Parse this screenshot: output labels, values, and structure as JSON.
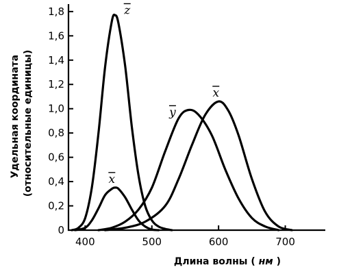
{
  "chart_data": {
    "type": "line",
    "title": "",
    "xlabel": "Длина волны (нм)",
    "xlabel_main": "Длина волны",
    "xlabel_unit": "нм",
    "ylabel_line1": "Удельная координата",
    "ylabel_line2": "(относительные единицы)",
    "xlim": [
      375,
      760
    ],
    "ylim": [
      0,
      1.85
    ],
    "xticks": [
      400,
      500,
      600,
      700
    ],
    "xtick_labels": [
      "400",
      "500",
      "600",
      "700"
    ],
    "yticks": [
      0,
      0.2,
      0.4,
      0.6,
      0.8,
      1.0,
      1.2,
      1.4,
      1.6,
      1.8
    ],
    "ytick_labels": [
      "0",
      "0,2",
      "0,4",
      "0,6",
      "0,8",
      "1,0",
      "1,2",
      "1,4",
      "1,6",
      "1,8"
    ],
    "grid": false,
    "series": [
      {
        "name": "z",
        "x": [
          380,
          390,
          400,
          410,
          420,
          430,
          440,
          445,
          450,
          460,
          470,
          480,
          490,
          500,
          510,
          520,
          530
        ],
        "y": [
          0.0,
          0.02,
          0.1,
          0.35,
          0.8,
          1.35,
          1.72,
          1.77,
          1.7,
          1.35,
          0.85,
          0.45,
          0.2,
          0.08,
          0.03,
          0.01,
          0.0
        ]
      },
      {
        "name": "x",
        "x": [
          385,
          400,
          410,
          420,
          430,
          440,
          445,
          450,
          460,
          470,
          480,
          490,
          500,
          510
        ],
        "y": [
          0.0,
          0.02,
          0.08,
          0.18,
          0.29,
          0.34,
          0.35,
          0.34,
          0.27,
          0.17,
          0.08,
          0.03,
          0.005,
          0.0
        ]
      },
      {
        "name": "y",
        "x": [
          420,
          440,
          460,
          480,
          500,
          520,
          540,
          555,
          570,
          590,
          610,
          630,
          650,
          670,
          690
        ],
        "y": [
          0.0,
          0.02,
          0.07,
          0.17,
          0.35,
          0.65,
          0.92,
          0.99,
          0.95,
          0.78,
          0.5,
          0.26,
          0.1,
          0.03,
          0.0
        ]
      },
      {
        "name": "x",
        "x": [
          430,
          460,
          490,
          520,
          540,
          560,
          580,
          600,
          615,
          630,
          650,
          670,
          690,
          710
        ],
        "y": [
          0.0,
          0.02,
          0.07,
          0.2,
          0.42,
          0.7,
          0.95,
          1.06,
          0.98,
          0.78,
          0.42,
          0.15,
          0.03,
          0.0
        ]
      }
    ],
    "labels": [
      {
        "series": 0,
        "text": "z",
        "at": [
          463,
          1.78
        ]
      },
      {
        "series": 1,
        "text": "x",
        "at": [
          440,
          0.39
        ]
      },
      {
        "series": 2,
        "text": "y",
        "at": [
          531,
          0.94
        ]
      },
      {
        "series": 3,
        "text": "x",
        "at": [
          596,
          1.1
        ]
      }
    ]
  }
}
